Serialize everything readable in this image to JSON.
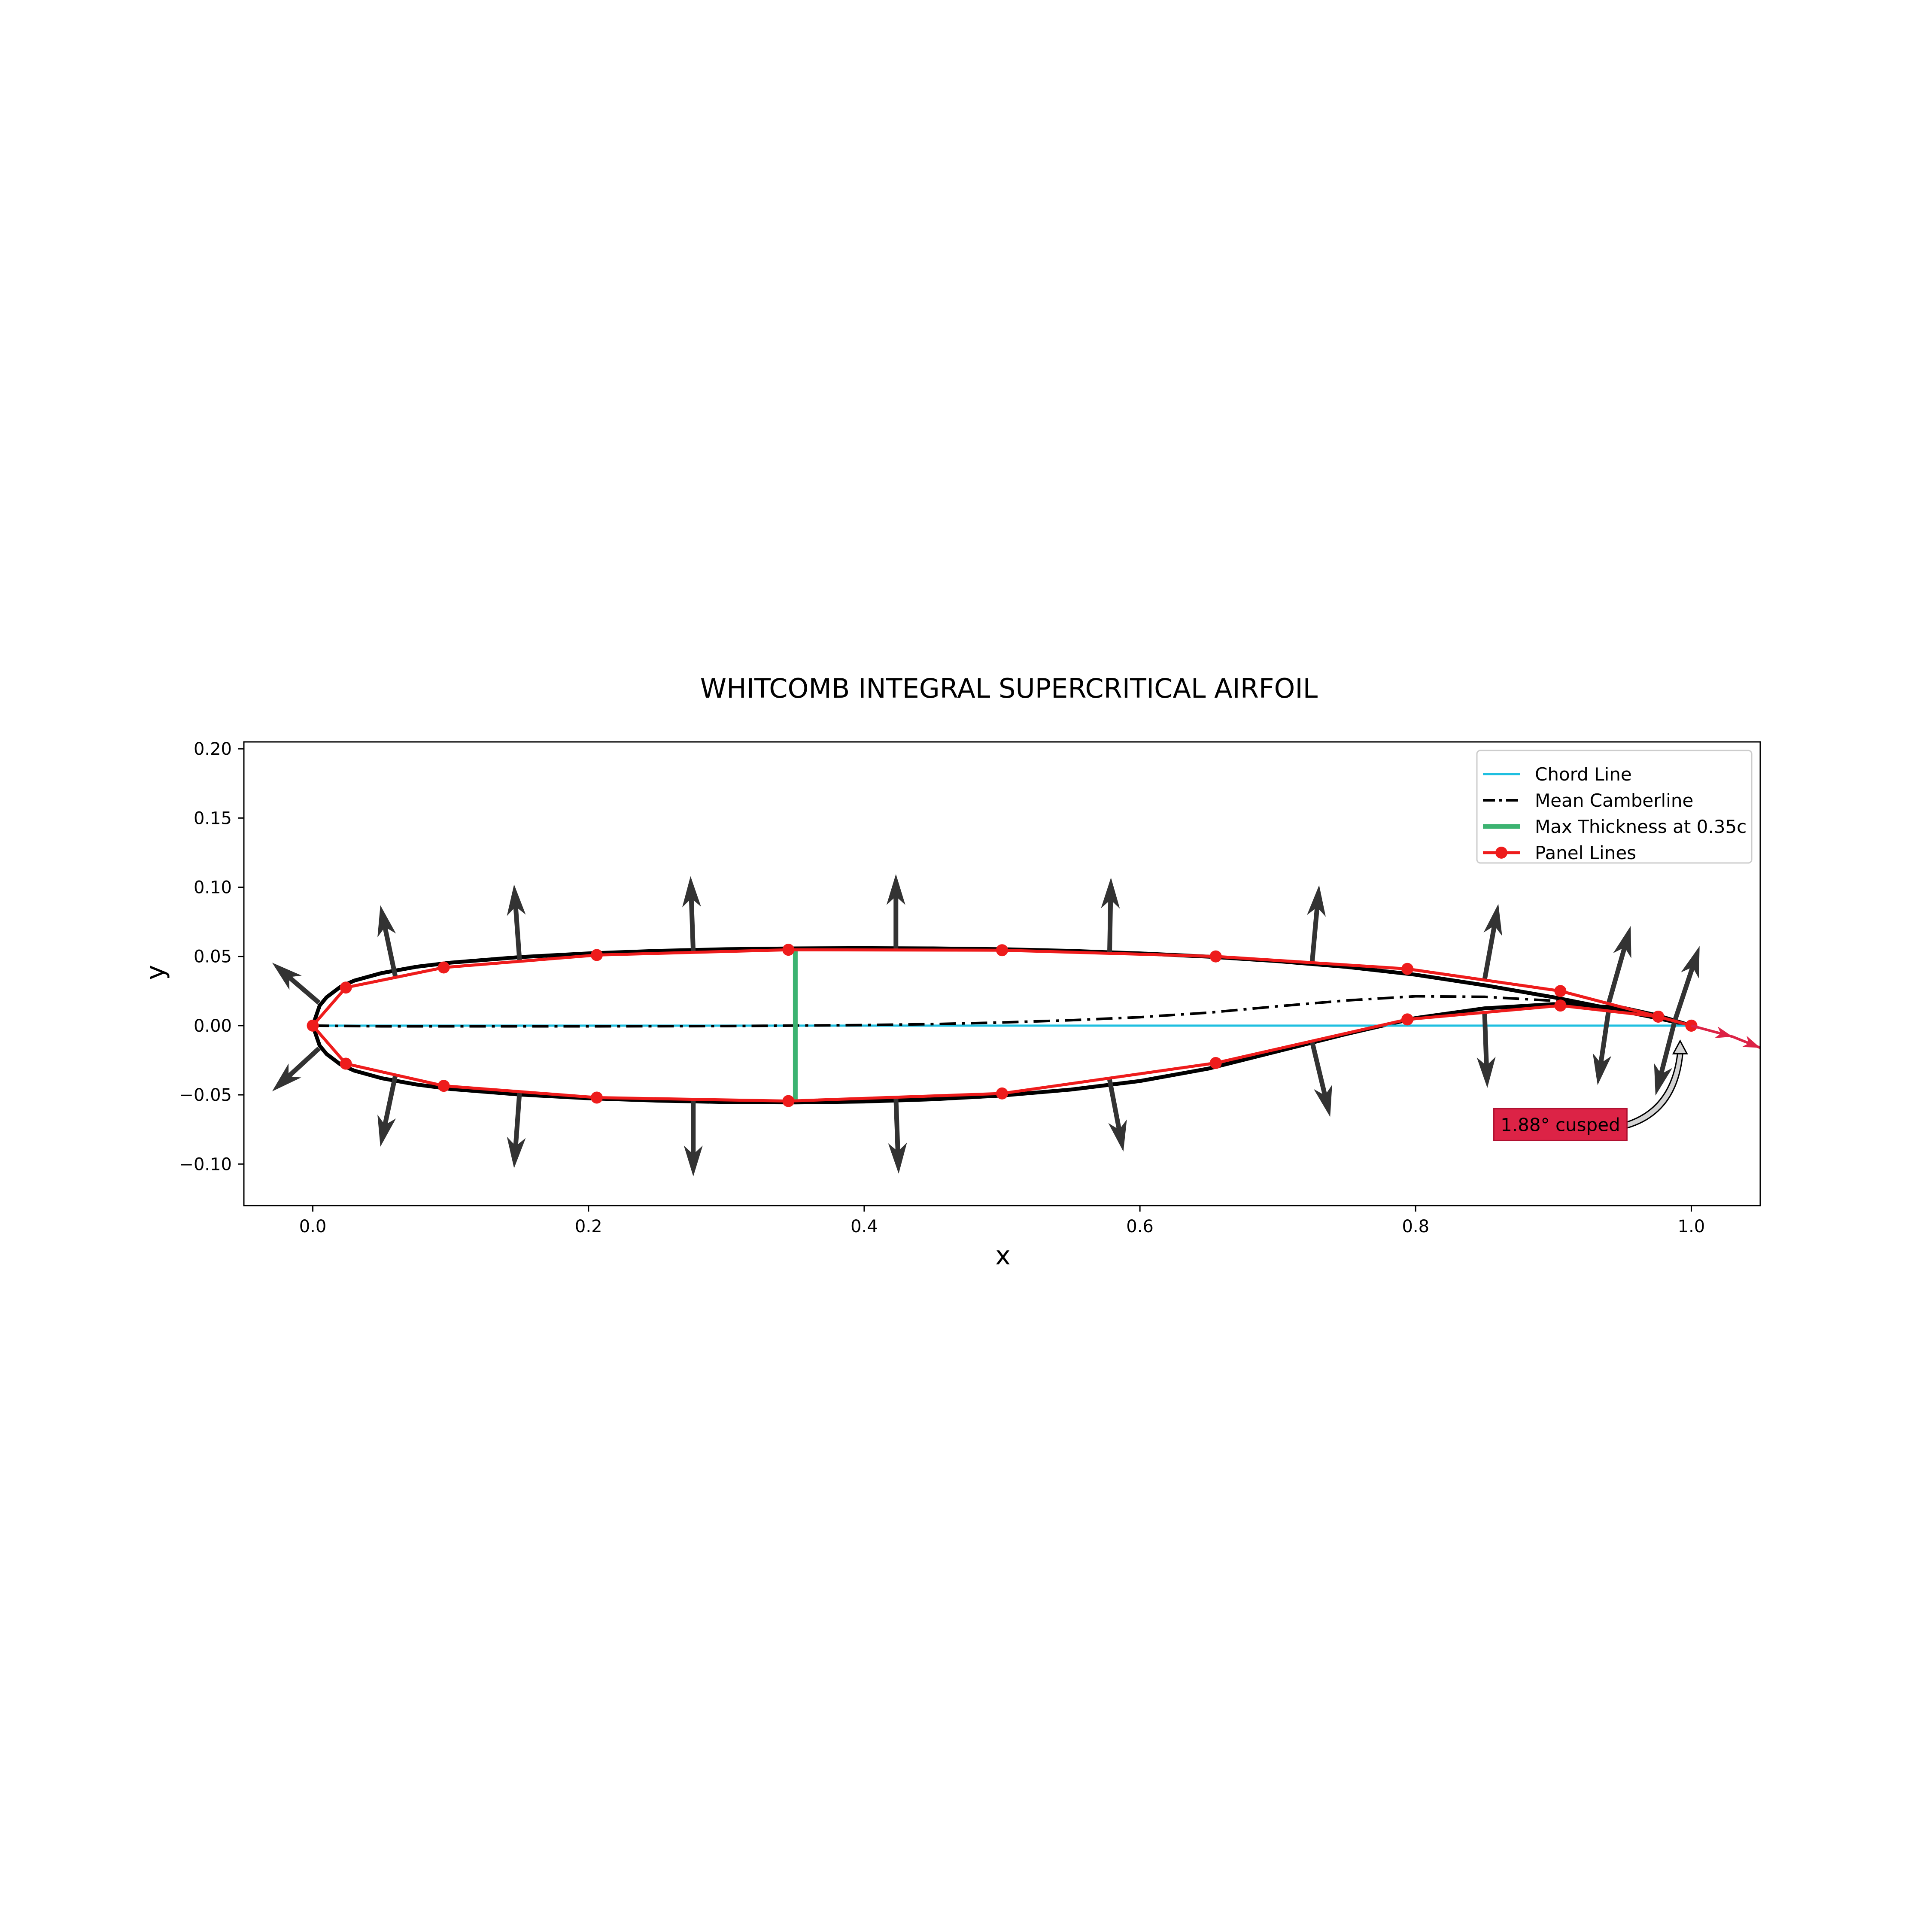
{
  "chart_data": {
    "type": "line",
    "title": "WHITCOMB INTEGRAL SUPERCRITICAL AIRFOIL",
    "xlabel": "x",
    "ylabel": "y",
    "xlim": [
      -0.05,
      1.05
    ],
    "ylim": [
      -0.13,
      0.205
    ],
    "xticks": [
      0.0,
      0.2,
      0.4,
      0.6,
      0.8,
      1.0
    ],
    "yticks": [
      -0.1,
      -0.05,
      0.0,
      0.05,
      0.1,
      0.15,
      0.2
    ],
    "xtick_labels": [
      "0.0",
      "0.2",
      "0.4",
      "0.6",
      "0.8",
      "1.0"
    ],
    "ytick_labels": [
      "−0.10",
      "−0.05",
      "0.00",
      "0.05",
      "0.10",
      "0.15",
      "0.20"
    ],
    "grid": false,
    "legend_position": "top-right",
    "legend": [
      {
        "label": "Chord Line",
        "color": "#1fbfe0",
        "style": "solid"
      },
      {
        "label": "Mean Camberline",
        "color": "#000000",
        "style": "dashdot"
      },
      {
        "label": "Max Thickness at 0.35c",
        "color": "#3cb371",
        "style": "thick"
      },
      {
        "label": "Panel Lines",
        "color": "#ee1c1c",
        "style": "marker"
      }
    ],
    "series": [
      {
        "name": "Airfoil Upper Surface",
        "color": "#000000",
        "x": [
          0.0,
          0.005,
          0.01,
          0.02,
          0.03,
          0.05,
          0.075,
          0.1,
          0.15,
          0.2,
          0.25,
          0.3,
          0.35,
          0.4,
          0.45,
          0.5,
          0.55,
          0.6,
          0.65,
          0.7,
          0.75,
          0.8,
          0.85,
          0.9,
          0.95,
          0.975,
          1.0
        ],
        "y": [
          0.0,
          0.0145,
          0.0205,
          0.028,
          0.0325,
          0.038,
          0.0425,
          0.0455,
          0.0495,
          0.0522,
          0.054,
          0.0552,
          0.0558,
          0.056,
          0.0558,
          0.0552,
          0.054,
          0.0522,
          0.0498,
          0.0466,
          0.0424,
          0.0368,
          0.0292,
          0.0205,
          0.0105,
          0.0055,
          0.0
        ]
      },
      {
        "name": "Airfoil Lower Surface",
        "color": "#000000",
        "x": [
          0.0,
          0.005,
          0.01,
          0.02,
          0.03,
          0.05,
          0.075,
          0.1,
          0.15,
          0.2,
          0.25,
          0.3,
          0.35,
          0.4,
          0.45,
          0.5,
          0.55,
          0.6,
          0.65,
          0.7,
          0.75,
          0.8,
          0.85,
          0.9,
          0.95,
          0.975,
          1.0
        ],
        "y": [
          0.0,
          -0.0145,
          -0.0205,
          -0.028,
          -0.0325,
          -0.038,
          -0.0425,
          -0.0458,
          -0.0498,
          -0.0525,
          -0.0542,
          -0.0552,
          -0.0555,
          -0.0548,
          -0.0532,
          -0.0505,
          -0.0462,
          -0.04,
          -0.031,
          -0.0185,
          -0.006,
          0.0055,
          0.0125,
          0.0155,
          0.013,
          0.0075,
          0.0
        ]
      },
      {
        "name": "Chord Line",
        "color": "#1fbfe0",
        "x": [
          0.0,
          1.0
        ],
        "y": [
          0.0,
          0.0
        ]
      },
      {
        "name": "Mean Camberline",
        "color": "#000000",
        "x": [
          0.0,
          0.05,
          0.1,
          0.2,
          0.3,
          0.4,
          0.45,
          0.5,
          0.55,
          0.6,
          0.65,
          0.7,
          0.75,
          0.8,
          0.85,
          0.9,
          0.95,
          1.0
        ],
        "y": [
          0.0,
          -0.0005,
          -0.0005,
          -0.0005,
          -0.0003,
          0.0004,
          0.0011,
          0.0023,
          0.0039,
          0.0061,
          0.0094,
          0.014,
          0.0182,
          0.0212,
          0.0208,
          0.018,
          0.0118,
          0.0
        ]
      },
      {
        "name": "Max Thickness at 0.35c",
        "color": "#3cb371",
        "x": [
          0.35,
          0.35
        ],
        "y": [
          -0.0545,
          0.0548
        ]
      },
      {
        "name": "Panel Lines",
        "color": "#ee1c1c",
        "x": [
          1.0,
          0.976,
          0.905,
          0.794,
          0.655,
          0.5,
          0.345,
          0.206,
          0.095,
          0.024,
          0.0,
          0.024,
          0.095,
          0.206,
          0.345,
          0.5,
          0.655,
          0.794,
          0.905,
          0.976,
          1.0
        ],
        "y": [
          0.0,
          0.0065,
          0.025,
          0.041,
          0.05,
          0.0545,
          0.0548,
          0.051,
          0.042,
          0.0275,
          0.0,
          -0.0275,
          -0.0435,
          -0.052,
          -0.0545,
          -0.049,
          -0.027,
          0.0045,
          0.0145,
          0.0065,
          0.0
        ]
      }
    ],
    "normals": [
      {
        "x": 0.0045,
        "y": 0.0165,
        "dx": -0.034,
        "dy": 0.029
      },
      {
        "x": 0.06,
        "y": 0.035,
        "dx": -0.011,
        "dy": 0.052
      },
      {
        "x": 0.15,
        "y": 0.047,
        "dx": -0.004,
        "dy": 0.055
      },
      {
        "x": 0.276,
        "y": 0.053,
        "dx": -0.002,
        "dy": 0.055
      },
      {
        "x": 0.423,
        "y": 0.0545,
        "dx": 0.0,
        "dy": 0.055
      },
      {
        "x": 0.578,
        "y": 0.052,
        "dx": 0.001,
        "dy": 0.055
      },
      {
        "x": 0.725,
        "y": 0.0465,
        "dx": 0.005,
        "dy": 0.055
      },
      {
        "x": 0.85,
        "y": 0.033,
        "dx": 0.01,
        "dy": 0.055
      },
      {
        "x": 0.94,
        "y": 0.016,
        "dx": 0.016,
        "dy": 0.056
      },
      {
        "x": 0.988,
        "y": 0.0035,
        "dx": 0.018,
        "dy": 0.054
      },
      {
        "x": 0.0045,
        "y": -0.0165,
        "dx": -0.034,
        "dy": -0.031
      },
      {
        "x": 0.06,
        "y": -0.0355,
        "dx": -0.011,
        "dy": -0.052
      },
      {
        "x": 0.15,
        "y": -0.048,
        "dx": -0.004,
        "dy": -0.055
      },
      {
        "x": 0.276,
        "y": -0.054,
        "dx": 0.0,
        "dy": -0.055
      },
      {
        "x": 0.423,
        "y": -0.052,
        "dx": 0.002,
        "dy": -0.055
      },
      {
        "x": 0.578,
        "y": -0.039,
        "dx": 0.01,
        "dy": -0.052
      },
      {
        "x": 0.725,
        "y": -0.012,
        "dx": 0.013,
        "dy": -0.054
      },
      {
        "x": 0.85,
        "y": 0.01,
        "dx": 0.002,
        "dy": -0.055
      },
      {
        "x": 0.94,
        "y": 0.011,
        "dx": -0.008,
        "dy": -0.054
      },
      {
        "x": 0.988,
        "y": 0.0035,
        "dx": -0.014,
        "dy": -0.054
      }
    ],
    "trailing_edge_arrow": {
      "x": [
        1.0,
        1.03,
        1.05
      ],
      "y": [
        0.0,
        -0.008,
        -0.016
      ],
      "color": "#dc2346"
    },
    "annotation": {
      "text": "1.88° cusped",
      "x": 0.905,
      "y": -0.0715,
      "target_x": 0.99,
      "target_y": -0.011,
      "box_color": "#dc2346"
    }
  }
}
